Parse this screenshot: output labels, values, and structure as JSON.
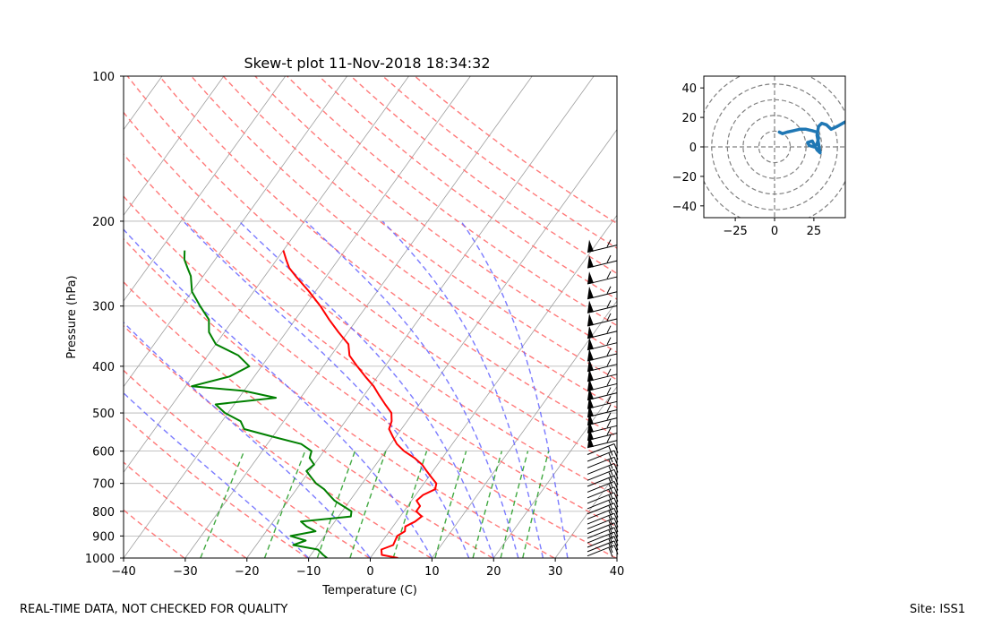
{
  "footer": {
    "left": "REAL-TIME DATA, NOT CHECKED FOR QUALITY",
    "right": "Site: ISS1"
  },
  "colors": {
    "temperature": "#ff0000",
    "dewpoint": "#008000",
    "dry_adiabat": "#ff6b6b",
    "moist_adiabat": "#6464ff",
    "mixing_ratio": "#2ca02c",
    "isotherm": "#9e9e9e",
    "hodograph": "#1f77b4",
    "barb": "#000000",
    "hodo_ring": "#808080"
  },
  "chart_data": [
    {
      "type": "skew-t",
      "title": "Skew-t plot 11-Nov-2018 18:34:32",
      "xlabel": "Temperature (C)",
      "ylabel": "Pressure (hPa)",
      "xlim": [
        -40,
        40
      ],
      "ylim": [
        1000,
        100
      ],
      "x_ticks": [
        -40,
        -30,
        -20,
        -10,
        0,
        10,
        20,
        30,
        40
      ],
      "y_ticks": [
        1000,
        900,
        800,
        700,
        600,
        500,
        400,
        300,
        200,
        100
      ],
      "temperature": [
        {
          "p": 1000,
          "t": 4.5
        },
        {
          "p": 985,
          "t": 1.5
        },
        {
          "p": 960,
          "t": 0.8
        },
        {
          "p": 940,
          "t": 2.2
        },
        {
          "p": 920,
          "t": 2.0
        },
        {
          "p": 900,
          "t": 1.8
        },
        {
          "p": 880,
          "t": 2.5
        },
        {
          "p": 860,
          "t": 2.0
        },
        {
          "p": 840,
          "t": 3.0
        },
        {
          "p": 820,
          "t": 3.5
        },
        {
          "p": 800,
          "t": 2.0
        },
        {
          "p": 780,
          "t": 2.0
        },
        {
          "p": 760,
          "t": 0.8
        },
        {
          "p": 740,
          "t": 1.2
        },
        {
          "p": 720,
          "t": 2.5
        },
        {
          "p": 700,
          "t": 2.0
        },
        {
          "p": 680,
          "t": 0.5
        },
        {
          "p": 660,
          "t": -1.0
        },
        {
          "p": 640,
          "t": -2.5
        },
        {
          "p": 620,
          "t": -4.5
        },
        {
          "p": 600,
          "t": -7.0
        },
        {
          "p": 580,
          "t": -9.0
        },
        {
          "p": 560,
          "t": -10.5
        },
        {
          "p": 540,
          "t": -12.0
        },
        {
          "p": 520,
          "t": -12.5
        },
        {
          "p": 500,
          "t": -13.5
        },
        {
          "p": 480,
          "t": -15.5
        },
        {
          "p": 460,
          "t": -17.5
        },
        {
          "p": 440,
          "t": -19.5
        },
        {
          "p": 420,
          "t": -22.0
        },
        {
          "p": 400,
          "t": -24.5
        },
        {
          "p": 380,
          "t": -27.0
        },
        {
          "p": 360,
          "t": -28.5
        },
        {
          "p": 340,
          "t": -31.5
        },
        {
          "p": 320,
          "t": -34.5
        },
        {
          "p": 300,
          "t": -37.5
        },
        {
          "p": 280,
          "t": -41.0
        },
        {
          "p": 260,
          "t": -45.0
        },
        {
          "p": 250,
          "t": -47.0
        },
        {
          "p": 240,
          "t": -48.5
        },
        {
          "p": 230,
          "t": -50.0
        }
      ],
      "dewpoint": [
        {
          "p": 1000,
          "t": -7.0
        },
        {
          "p": 985,
          "t": -8.0
        },
        {
          "p": 960,
          "t": -9.5
        },
        {
          "p": 940,
          "t": -14.0
        },
        {
          "p": 920,
          "t": -12.5
        },
        {
          "p": 900,
          "t": -15.5
        },
        {
          "p": 880,
          "t": -12.0
        },
        {
          "p": 860,
          "t": -14.0
        },
        {
          "p": 840,
          "t": -15.5
        },
        {
          "p": 820,
          "t": -8.0
        },
        {
          "p": 800,
          "t": -8.5
        },
        {
          "p": 780,
          "t": -10.5
        },
        {
          "p": 760,
          "t": -12.5
        },
        {
          "p": 740,
          "t": -14.0
        },
        {
          "p": 720,
          "t": -15.5
        },
        {
          "p": 700,
          "t": -17.5
        },
        {
          "p": 680,
          "t": -19.0
        },
        {
          "p": 660,
          "t": -20.5
        },
        {
          "p": 640,
          "t": -20.0
        },
        {
          "p": 620,
          "t": -21.5
        },
        {
          "p": 600,
          "t": -22.0
        },
        {
          "p": 580,
          "t": -24.5
        },
        {
          "p": 560,
          "t": -30.0
        },
        {
          "p": 540,
          "t": -35.5
        },
        {
          "p": 520,
          "t": -37.0
        },
        {
          "p": 500,
          "t": -40.5
        },
        {
          "p": 480,
          "t": -43.0
        },
        {
          "p": 465,
          "t": -34.0
        },
        {
          "p": 450,
          "t": -40.0
        },
        {
          "p": 440,
          "t": -49.0
        },
        {
          "p": 420,
          "t": -44.0
        },
        {
          "p": 400,
          "t": -42.0
        },
        {
          "p": 380,
          "t": -45.0
        },
        {
          "p": 360,
          "t": -50.0
        },
        {
          "p": 340,
          "t": -52.5
        },
        {
          "p": 320,
          "t": -54.0
        },
        {
          "p": 300,
          "t": -57.0
        },
        {
          "p": 280,
          "t": -60.0
        },
        {
          "p": 260,
          "t": -62.0
        },
        {
          "p": 250,
          "t": -63.5
        },
        {
          "p": 240,
          "t": -65.0
        },
        {
          "p": 230,
          "t": -66.0
        }
      ],
      "wind_barbs": [
        {
          "p": 990
        },
        {
          "p": 970
        },
        {
          "p": 950
        },
        {
          "p": 930
        },
        {
          "p": 910
        },
        {
          "p": 890
        },
        {
          "p": 870
        },
        {
          "p": 850
        },
        {
          "p": 830
        },
        {
          "p": 810
        },
        {
          "p": 790
        },
        {
          "p": 770
        },
        {
          "p": 750
        },
        {
          "p": 730
        },
        {
          "p": 710
        },
        {
          "p": 690
        },
        {
          "p": 670
        },
        {
          "p": 650
        },
        {
          "p": 630
        },
        {
          "p": 610
        },
        {
          "p": 590
        },
        {
          "p": 570
        },
        {
          "p": 550
        },
        {
          "p": 530
        },
        {
          "p": 510
        },
        {
          "p": 490
        },
        {
          "p": 470
        },
        {
          "p": 450
        },
        {
          "p": 430
        },
        {
          "p": 410
        },
        {
          "p": 390
        },
        {
          "p": 370
        },
        {
          "p": 350
        },
        {
          "p": 330
        },
        {
          "p": 310
        },
        {
          "p": 290
        },
        {
          "p": 270
        },
        {
          "p": 250
        },
        {
          "p": 232
        }
      ]
    },
    {
      "type": "hodograph",
      "xlim": [
        -45,
        45
      ],
      "ylim": [
        -48,
        48
      ],
      "x_ticks": [
        -25,
        0,
        25
      ],
      "y_ticks": [
        -40,
        -20,
        0,
        20,
        40
      ],
      "rings": [
        10,
        20,
        30,
        40,
        50
      ],
      "points": [
        {
          "u": 3,
          "v": 10
        },
        {
          "u": 5,
          "v": 9
        },
        {
          "u": 8,
          "v": 10
        },
        {
          "u": 12,
          "v": 11
        },
        {
          "u": 16,
          "v": 12
        },
        {
          "u": 20,
          "v": 12
        },
        {
          "u": 24,
          "v": 11
        },
        {
          "u": 27,
          "v": 10
        },
        {
          "u": 28,
          "v": 6
        },
        {
          "u": 27,
          "v": 2
        },
        {
          "u": 25,
          "v": 0
        },
        {
          "u": 22,
          "v": 1
        },
        {
          "u": 21,
          "v": 3
        },
        {
          "u": 24,
          "v": 4
        },
        {
          "u": 27,
          "v": -2
        },
        {
          "u": 29,
          "v": -4
        },
        {
          "u": 28,
          "v": 2
        },
        {
          "u": 27,
          "v": 8
        },
        {
          "u": 28,
          "v": 14
        },
        {
          "u": 30,
          "v": 16
        },
        {
          "u": 33,
          "v": 15
        },
        {
          "u": 36,
          "v": 12
        },
        {
          "u": 40,
          "v": 14
        },
        {
          "u": 45,
          "v": 17
        }
      ]
    }
  ]
}
